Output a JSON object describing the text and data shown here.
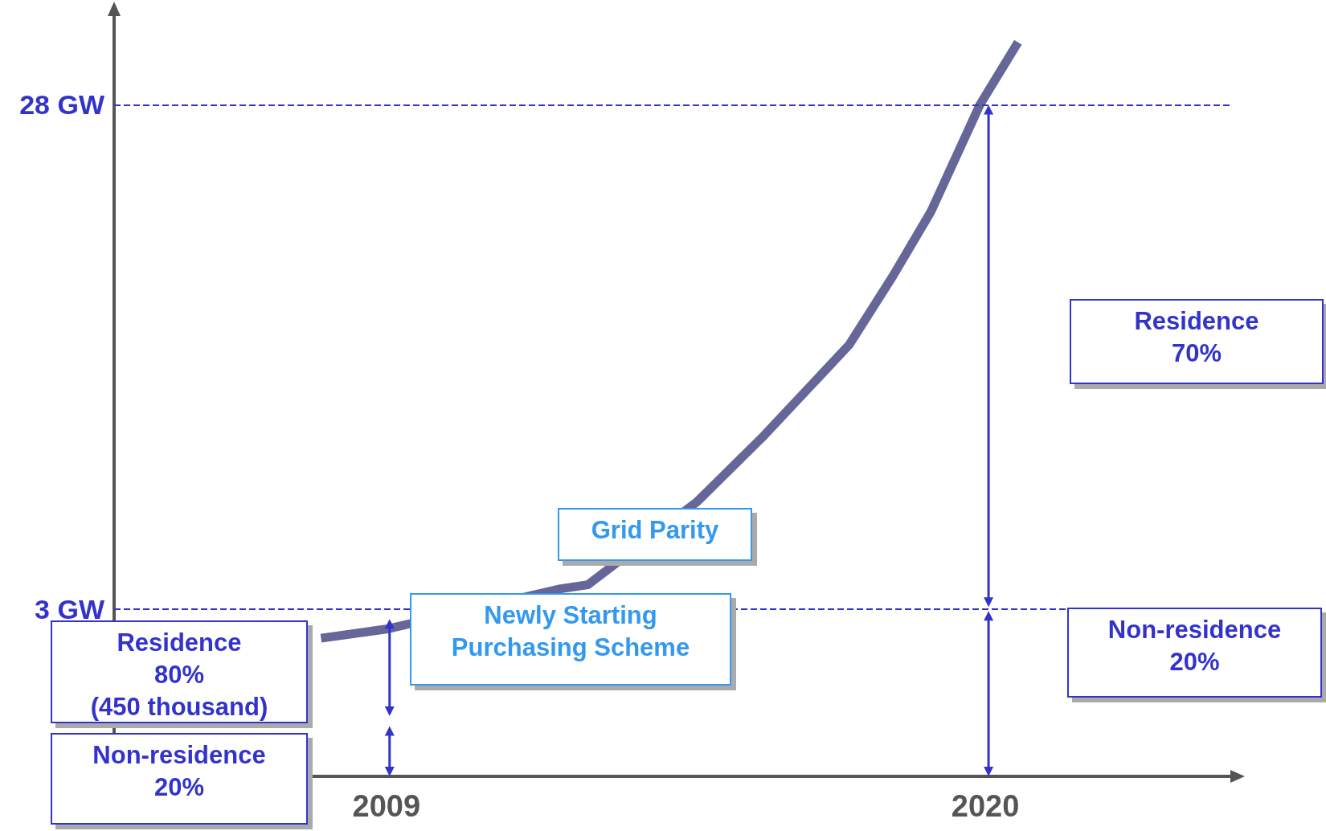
{
  "chart_data": {
    "type": "line",
    "x": [
      2007.8,
      2009.0,
      2012.2,
      2012.7,
      2014.7,
      2015.9,
      2016.7,
      2017.5,
      2018.3,
      2019.0,
      2019.9,
      2020.6
    ],
    "series": [
      {
        "color": "#666699",
        "values": [
          1.55,
          2.0,
          4.0,
          4.2,
          8.3,
          11.5,
          13.8,
          16.1,
          19.5,
          22.7,
          28,
          31.1
        ]
      }
    ],
    "xlim": [
      2004,
      2024.5
    ],
    "xticks": [
      2009,
      2020
    ],
    "ylim": [
      -5.3,
      32.4
    ],
    "yticks": [
      {
        "value": 3,
        "label": "3 GW"
      },
      {
        "value": 28,
        "label": "28 GW"
      }
    ],
    "ref_lines": [
      {
        "axis": "y",
        "value": 3,
        "color": "#3333cc",
        "line_style": "dashed"
      },
      {
        "axis": "y",
        "value": 28,
        "color": "#3333cc",
        "line_style": "dashed"
      }
    ],
    "annotations": [
      "Residence\n80%\n(450 thousand)",
      "Non-residence\n20%",
      "Newly Starting\nPurchasing Scheme",
      "Grid Parity",
      "Residence\n70%",
      "Non-residence\n20%"
    ],
    "grid": false,
    "marker": "none",
    "line_style": "solid"
  }
}
